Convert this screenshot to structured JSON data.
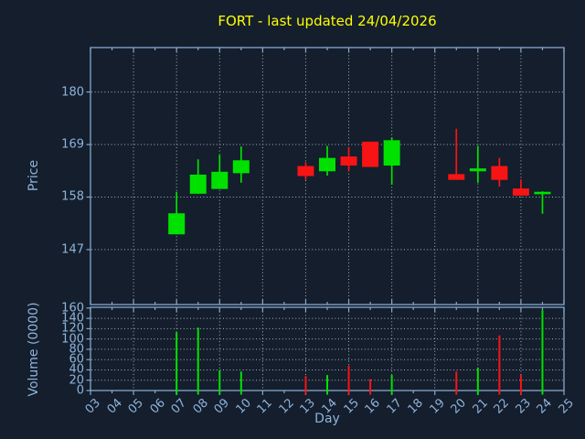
{
  "colors": {
    "background": "#141e2d",
    "frame": "#85a9d0",
    "grid": "#b2bac4",
    "tick_text": "#8fb3d9",
    "title": "#ffff00",
    "up": "#00e100",
    "down": "#f81414"
  },
  "chart_data": {
    "type": "candlestick",
    "title": "FORT - last updated 24/04/2026",
    "xlabel": "Day",
    "price_ylabel": "Price",
    "volume_ylabel": "Volume (0000)",
    "legend": "none",
    "grid": "dotted",
    "x_axis": {
      "min": 3,
      "max": 25,
      "tick_labels": [
        "03",
        "04",
        "05",
        "06",
        "07",
        "08",
        "09",
        "10",
        "11",
        "12",
        "13",
        "14",
        "15",
        "16",
        "17",
        "18",
        "19",
        "20",
        "21",
        "22",
        "23",
        "24",
        "25"
      ],
      "gridline_days": [
        5,
        7,
        9,
        11,
        13,
        15,
        17,
        19,
        21,
        23
      ]
    },
    "price_axis": {
      "ticks": [
        147,
        158,
        169,
        180
      ],
      "min": 135.5,
      "max": 189.3
    },
    "volume_axis": {
      "ticks": [
        0,
        20,
        40,
        60,
        80,
        100,
        120,
        140,
        160
      ],
      "min": 0,
      "max": 161.5
    },
    "candles": [
      {
        "day": 7,
        "label": "07",
        "open": 150.2,
        "high": 159.1,
        "low": 150.2,
        "close": 154.6,
        "volume": 113
      },
      {
        "day": 8,
        "label": "08",
        "open": 158.7,
        "high": 165.9,
        "low": 158.7,
        "close": 162.7,
        "volume": 122
      },
      {
        "day": 9,
        "label": "09",
        "open": 159.7,
        "high": 166.8,
        "low": 159.7,
        "close": 163.3,
        "volume": 39
      },
      {
        "day": 10,
        "label": "10",
        "open": 163.0,
        "high": 168.6,
        "low": 161.0,
        "close": 165.7,
        "volume": 37
      },
      {
        "day": 13,
        "label": "13",
        "open": 164.5,
        "high": 165.3,
        "low": 161.6,
        "close": 162.4,
        "volume": 28
      },
      {
        "day": 14,
        "label": "14",
        "open": 163.4,
        "high": 168.7,
        "low": 162.5,
        "close": 166.2,
        "volume": 30
      },
      {
        "day": 15,
        "label": "15",
        "open": 166.5,
        "high": 168.5,
        "low": 163.4,
        "close": 164.6,
        "volume": 48
      },
      {
        "day": 16,
        "label": "16",
        "open": 169.6,
        "high": 169.6,
        "low": 164.3,
        "close": 164.3,
        "volume": 22
      },
      {
        "day": 17,
        "label": "17",
        "open": 164.6,
        "high": 170.5,
        "low": 160.6,
        "close": 169.9,
        "volume": 30
      },
      {
        "day": 20,
        "label": "20",
        "open": 162.8,
        "high": 172.3,
        "low": 161.6,
        "close": 161.6,
        "volume": 37
      },
      {
        "day": 21,
        "label": "21",
        "open": 163.4,
        "high": 168.7,
        "low": 161.0,
        "close": 164.0,
        "volume": 44
      },
      {
        "day": 22,
        "label": "22",
        "open": 164.5,
        "high": 166.2,
        "low": 160.2,
        "close": 161.6,
        "volume": 107
      },
      {
        "day": 23,
        "label": "23",
        "open": 159.8,
        "high": 161.7,
        "low": 158.3,
        "close": 158.3,
        "volume": 30
      },
      {
        "day": 24,
        "label": "24",
        "open": 158.6,
        "high": 159.2,
        "low": 154.5,
        "close": 159.1,
        "volume": 156
      }
    ]
  }
}
